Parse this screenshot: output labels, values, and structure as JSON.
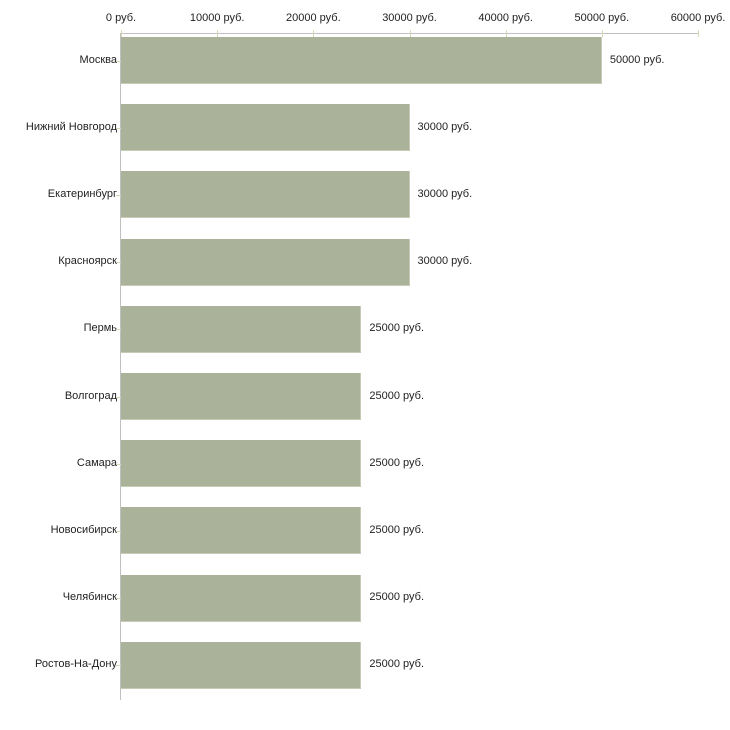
{
  "chart_data": {
    "type": "bar",
    "orientation": "horizontal",
    "title": "",
    "xlabel": "",
    "ylabel": "",
    "categories": [
      "Москва",
      "Нижний Новгород",
      "Екатеринбург",
      "Красноярск",
      "Пермь",
      "Волгоград",
      "Самара",
      "Новосибирск",
      "Челябинск",
      "Ростов-На-Дону"
    ],
    "values": [
      50000,
      30000,
      30000,
      30000,
      25000,
      25000,
      25000,
      25000,
      25000,
      25000
    ],
    "value_labels": [
      "50000 руб.",
      "30000 руб.",
      "30000 руб.",
      "30000 руб.",
      "25000 руб.",
      "25000 руб.",
      "25000 руб.",
      "25000 руб.",
      "25000 руб.",
      "25000 руб."
    ],
    "x_ticks": [
      0,
      10000,
      20000,
      30000,
      40000,
      50000,
      60000
    ],
    "x_tick_labels": [
      "0 руб.",
      "10000 руб.",
      "20000 руб.",
      "30000 руб.",
      "40000 руб.",
      "50000 руб.",
      "60000 руб."
    ],
    "xlim": [
      0,
      60000
    ],
    "grid": false,
    "legend": null,
    "axis_position": "top",
    "colors": {
      "bar_fill": "#abb29a",
      "bar_edge": "#c6cbb6",
      "axis_line": "#c0c0c0",
      "tick_mark": "#d8d8b6",
      "text": "#1f1f1f",
      "background": "#ffffff"
    }
  }
}
